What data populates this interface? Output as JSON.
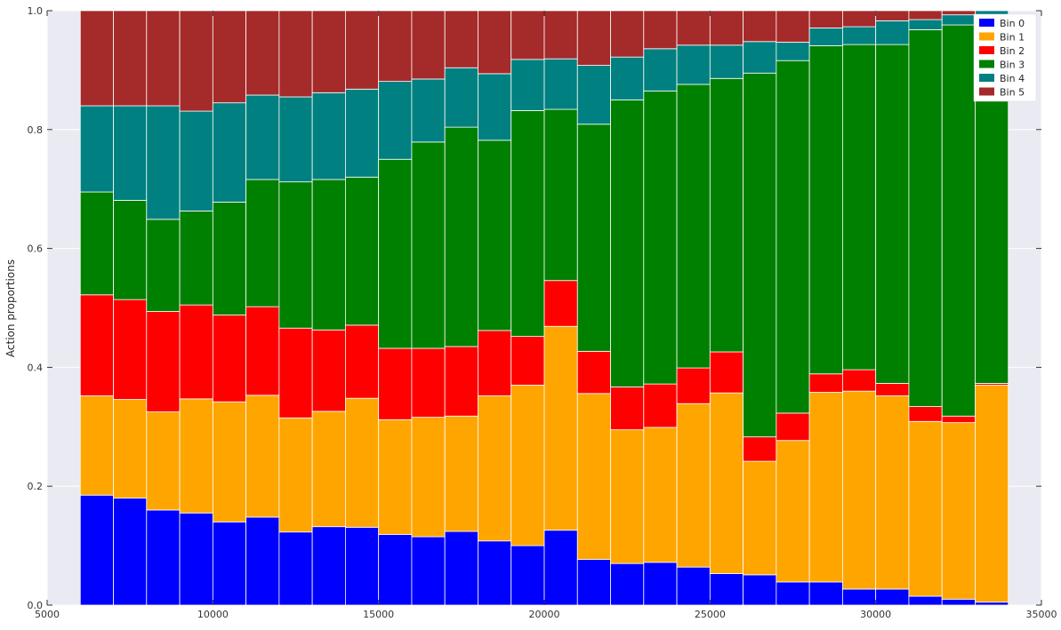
{
  "chart_data": {
    "type": "bar",
    "stacked": true,
    "normalized": true,
    "title": "",
    "xlabel": "",
    "ylabel": "Action proportions",
    "xlim": [
      5000,
      35000
    ],
    "ylim": [
      0.0,
      1.0
    ],
    "xticks": [
      "5000",
      "10000",
      "15000",
      "20000",
      "25000",
      "30000",
      "35000"
    ],
    "yticks": [
      "0.0",
      "0.2",
      "0.4",
      "0.6",
      "0.8",
      "1.0"
    ],
    "grid": true,
    "legend_position": "top-right",
    "bin_width": 1000,
    "x": [
      6500,
      7500,
      8500,
      9500,
      10500,
      11500,
      12500,
      13500,
      14500,
      15500,
      16500,
      17500,
      18500,
      19500,
      20500,
      21500,
      22500,
      23500,
      24500,
      25500,
      26500,
      27500,
      28500,
      29500,
      30500,
      31500,
      32500,
      33500
    ],
    "series": [
      {
        "name": "Bin 0",
        "color": "#0000ff",
        "values": [
          0.185,
          0.18,
          0.16,
          0.155,
          0.14,
          0.148,
          0.123,
          0.132,
          0.131,
          0.119,
          0.115,
          0.124,
          0.108,
          0.1,
          0.126,
          0.077,
          0.07,
          0.072,
          0.064,
          0.053,
          0.051,
          0.039,
          0.039,
          0.027,
          0.027,
          0.015,
          0.01,
          0.005
        ]
      },
      {
        "name": "Bin 1",
        "color": "#ffa500",
        "values": [
          0.167,
          0.166,
          0.165,
          0.192,
          0.202,
          0.205,
          0.192,
          0.194,
          0.217,
          0.193,
          0.201,
          0.194,
          0.244,
          0.27,
          0.343,
          0.279,
          0.225,
          0.227,
          0.275,
          0.304,
          0.191,
          0.238,
          0.319,
          0.333,
          0.325,
          0.294,
          0.297,
          0.365
        ]
      },
      {
        "name": "Bin 2",
        "color": "#ff0000",
        "values": [
          0.17,
          0.168,
          0.169,
          0.158,
          0.146,
          0.149,
          0.151,
          0.137,
          0.123,
          0.12,
          0.116,
          0.117,
          0.11,
          0.082,
          0.077,
          0.071,
          0.072,
          0.073,
          0.06,
          0.069,
          0.041,
          0.046,
          0.031,
          0.036,
          0.021,
          0.025,
          0.011,
          0.003
        ]
      },
      {
        "name": "Bin 3",
        "color": "#008000",
        "values": [
          0.173,
          0.167,
          0.155,
          0.158,
          0.19,
          0.214,
          0.246,
          0.253,
          0.249,
          0.318,
          0.347,
          0.369,
          0.32,
          0.38,
          0.288,
          0.382,
          0.483,
          0.493,
          0.477,
          0.46,
          0.612,
          0.593,
          0.552,
          0.547,
          0.57,
          0.634,
          0.658,
          0.614
        ]
      },
      {
        "name": "Bin 4",
        "color": "#008080",
        "values": [
          0.145,
          0.159,
          0.191,
          0.168,
          0.167,
          0.142,
          0.143,
          0.146,
          0.148,
          0.131,
          0.106,
          0.1,
          0.112,
          0.086,
          0.085,
          0.099,
          0.072,
          0.071,
          0.066,
          0.056,
          0.053,
          0.031,
          0.03,
          0.03,
          0.04,
          0.017,
          0.017,
          0.013
        ]
      },
      {
        "name": "Bin 5",
        "color": "#a52a2a",
        "values": [
          0.16,
          0.16,
          0.16,
          0.169,
          0.155,
          0.142,
          0.145,
          0.138,
          0.132,
          0.119,
          0.115,
          0.096,
          0.106,
          0.084,
          0.081,
          0.092,
          0.078,
          0.064,
          0.058,
          0.058,
          0.052,
          0.053,
          0.029,
          0.027,
          0.017,
          0.015,
          0.007,
          0.0
        ]
      }
    ]
  },
  "colors": {
    "plot_background": "#eaeaf2",
    "grid": "#ffffff",
    "bar_edge": "#ffffff"
  }
}
